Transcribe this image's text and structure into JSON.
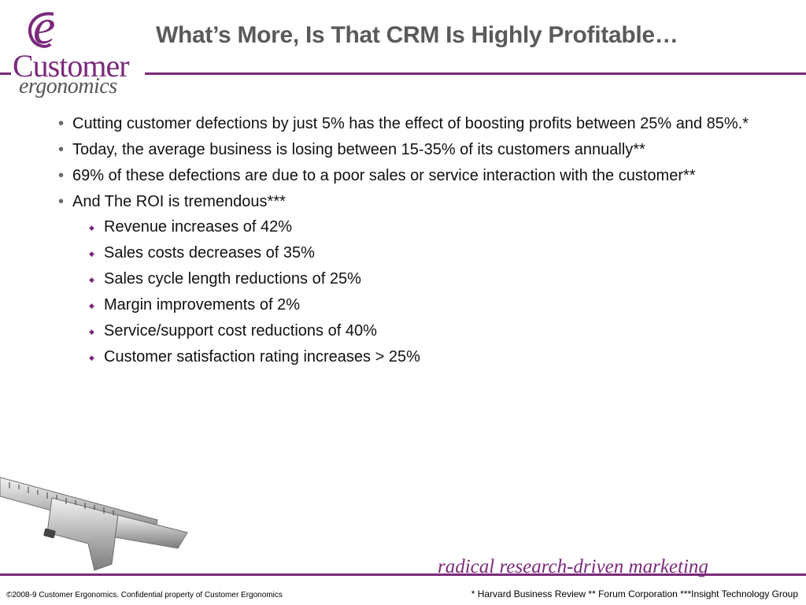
{
  "logo": {
    "letter": "e",
    "line1": "Customer",
    "line2": "ergonomics"
  },
  "slide": {
    "title": "What’s More, Is That CRM Is Highly Profitable…",
    "bullets": [
      "Cutting customer defections by just 5% has the effect of boosting profits between 25% and 85%.*",
      "Today, the average business is losing between 15-35% of its customers annually**",
      "69% of these defections are due to a poor sales or service interaction with the customer**",
      "And The ROI is tremendous***"
    ],
    "roi_items": [
      "Revenue increases of 42%",
      "Sales costs decreases of 35%",
      "Sales cycle length reductions of 25%",
      "Margin improvements of 2%",
      "Service/support cost reductions of 40%",
      "Customer satisfaction rating increases > 25%"
    ]
  },
  "footer": {
    "tagline": "radical research-driven marketing",
    "copyright": "©2008-9 Customer Ergonomics. Confidential property of Customer Ergonomics",
    "sources": "* Harvard Business Review   ** Forum Corporation  ***Insight Technology Group"
  },
  "colors": {
    "brand_purple": "#7a2a7a",
    "title_gray": "#5a5a5a"
  },
  "icons": {
    "caliper": "vernier-caliper-icon"
  }
}
